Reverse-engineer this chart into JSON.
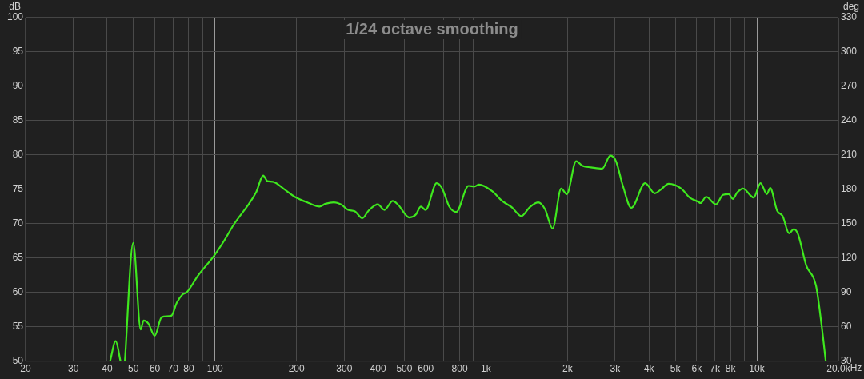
{
  "chart_data": {
    "type": "line",
    "title": "1/24 octave smoothing",
    "ylabel": "dB",
    "y2label": "deg",
    "log": "x",
    "grid": true,
    "legend": false,
    "marker": "none",
    "line_style": "solid",
    "xlim": [
      20,
      20000
    ],
    "xticks": [
      20,
      30,
      40,
      50,
      60,
      70,
      80,
      {
        "value": 90,
        "label": null
      },
      100,
      200,
      300,
      400,
      500,
      600,
      {
        "value": 700,
        "label": null
      },
      800,
      {
        "value": 900,
        "label": null
      },
      {
        "value": 1000,
        "label": "1k"
      },
      {
        "value": 2000,
        "label": "2k"
      },
      {
        "value": 3000,
        "label": "3k"
      },
      {
        "value": 4000,
        "label": "4k"
      },
      {
        "value": 5000,
        "label": "5k"
      },
      {
        "value": 6000,
        "label": "6k"
      },
      {
        "value": 7000,
        "label": "7k"
      },
      {
        "value": 8000,
        "label": "8k"
      },
      {
        "value": 9000,
        "label": null
      },
      {
        "value": 10000,
        "label": "10k"
      },
      {
        "value": 20000,
        "label": "20.0k"
      }
    ],
    "xlabel": "Hz",
    "ylim": [
      50,
      100
    ],
    "yticks": [
      50,
      55,
      60,
      65,
      70,
      75,
      80,
      85,
      90,
      95,
      100
    ],
    "y2lim": [
      30,
      330
    ],
    "y2ticks": [
      30,
      60,
      90,
      120,
      150,
      180,
      210,
      240,
      270,
      300,
      330
    ],
    "series": [
      {
        "color": "#3fe81e",
        "x": [
          41,
          43,
          44.8,
          45.6,
          46.5,
          49.9,
          53.2,
          54.5,
          56.7,
          59.9,
          63.6,
          69,
          72.3,
          75.9,
          78.6,
          86.4,
          99.5,
          108,
          117,
          142,
          150.6,
          156,
          163.5,
          181.7,
          197,
          222,
          243,
          256,
          275,
          292,
          310,
          328,
          350,
          369,
          399,
          422,
          453,
          473,
          522,
          551,
          575,
          599,
          658,
          690,
          732,
          777,
          863,
          906,
          943,
          1057,
          1148,
          1245,
          1352,
          1452,
          1559,
          1653,
          1762,
          1896,
          1988,
          2153,
          2275,
          2443,
          2685,
          2881,
          3020,
          3204,
          3439,
          3871,
          4202,
          4404,
          4728,
          5260,
          5647,
          6067,
          6200,
          6500,
          7065,
          7496,
          7876,
          8152,
          8451,
          8895,
          9731,
          10320,
          10890,
          11200,
          11880,
          12450,
          13150,
          13690,
          14180,
          15220,
          16530,
          17330,
          17960
        ],
        "values": [
          50,
          52.9,
          50,
          null,
          50,
          67.2,
          54.6,
          55.9,
          55.5,
          53.7,
          56.4,
          56.6,
          58.5,
          59.7,
          60.0,
          62.4,
          65.4,
          67.5,
          69.8,
          74.6,
          77.0,
          76.2,
          76.1,
          74.9,
          73.9,
          73.0,
          72.5,
          72.9,
          73.1,
          72.8,
          72.0,
          71.8,
          70.8,
          71.9,
          72.8,
          72.0,
          73.3,
          72.8,
          70.9,
          71.3,
          72.5,
          72.0,
          75.9,
          75.1,
          72.5,
          71.7,
          75.5,
          75.4,
          75.7,
          74.7,
          73.3,
          72.4,
          71.1,
          72.4,
          73.1,
          72.1,
          69.3,
          75.1,
          74.3,
          79.1,
          78.4,
          78.2,
          78.0,
          79.9,
          79.1,
          75.5,
          72.3,
          75.9,
          74.4,
          74.9,
          75.8,
          75.1,
          73.8,
          73.2,
          73.0,
          73.9,
          72.8,
          74.2,
          74.3,
          73.6,
          74.5,
          75.1,
          73.8,
          75.9,
          74.3,
          75.2,
          71.9,
          71.1,
          68.6,
          69.2,
          68.5,
          63.9,
          61.0,
          55.3,
          50.0
        ]
      }
    ]
  }
}
